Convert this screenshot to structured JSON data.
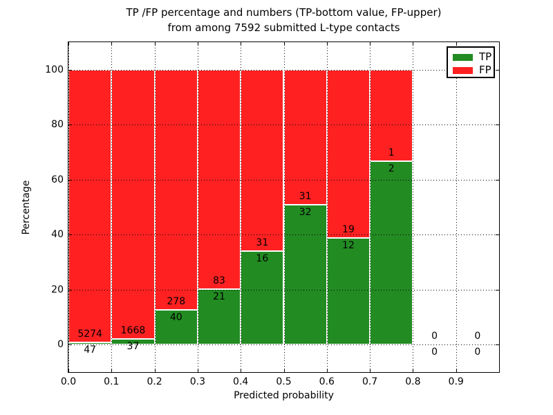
{
  "title": {
    "line1": "TP /FP percentage and numbers (TP-bottom value, FP-upper)",
    "line2": "from among 7592 submitted L-type contacts"
  },
  "axes": {
    "xlabel": "Predicted probability",
    "ylabel": "Percentage",
    "x_ticks": [
      "0.0",
      "0.1",
      "0.2",
      "0.3",
      "0.4",
      "0.5",
      "0.6",
      "0.7",
      "0.8",
      "0.9"
    ],
    "y_ticks": [
      "0",
      "20",
      "40",
      "60",
      "80",
      "100"
    ]
  },
  "legend": {
    "position": "upper right",
    "items": [
      {
        "label": "TP",
        "color": "#228B22"
      },
      {
        "label": "FP",
        "color": "#FF2121"
      }
    ]
  },
  "chart_data": {
    "type": "bar",
    "stacked": true,
    "title": "TP /FP percentage and numbers (TP-bottom value, FP-upper) from among 7592 submitted L-type contacts",
    "xlabel": "Predicted probability",
    "ylabel": "Percentage",
    "xlim": [
      0.0,
      1.0
    ],
    "ylim": [
      -10,
      110
    ],
    "grid": "dotted",
    "legend_position": "upper right",
    "total_submitted": 7592,
    "bin_width": 0.1,
    "colors": {
      "tp": "#228B22",
      "fp": "#FF2121"
    },
    "bins": [
      {
        "x_start": 0.0,
        "x_end": 0.1,
        "tp": 47,
        "fp": 5274,
        "tp_pct": 0.88,
        "fp_pct": 99.12
      },
      {
        "x_start": 0.1,
        "x_end": 0.2,
        "tp": 37,
        "fp": 1668,
        "tp_pct": 2.17,
        "fp_pct": 97.83
      },
      {
        "x_start": 0.2,
        "x_end": 0.3,
        "tp": 40,
        "fp": 278,
        "tp_pct": 12.58,
        "fp_pct": 87.42
      },
      {
        "x_start": 0.3,
        "x_end": 0.4,
        "tp": 21,
        "fp": 83,
        "tp_pct": 20.19,
        "fp_pct": 79.81
      },
      {
        "x_start": 0.4,
        "x_end": 0.5,
        "tp": 16,
        "fp": 31,
        "tp_pct": 34.04,
        "fp_pct": 65.96
      },
      {
        "x_start": 0.5,
        "x_end": 0.6,
        "tp": 32,
        "fp": 31,
        "tp_pct": 50.79,
        "fp_pct": 49.21
      },
      {
        "x_start": 0.6,
        "x_end": 0.7,
        "tp": 12,
        "fp": 19,
        "tp_pct": 38.71,
        "fp_pct": 61.29
      },
      {
        "x_start": 0.7,
        "x_end": 0.8,
        "tp": 2,
        "fp": 1,
        "tp_pct": 66.67,
        "fp_pct": 33.33
      },
      {
        "x_start": 0.8,
        "x_end": 0.9,
        "tp": 0,
        "fp": 0,
        "tp_pct": 0,
        "fp_pct": 0
      },
      {
        "x_start": 0.9,
        "x_end": 1.0,
        "tp": 0,
        "fp": 0,
        "tp_pct": 0,
        "fp_pct": 0
      }
    ]
  }
}
